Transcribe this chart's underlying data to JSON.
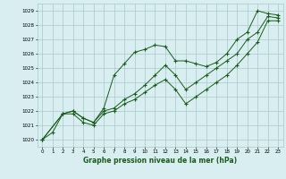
{
  "xlabel": "Graphe pression niveau de la mer (hPa)",
  "xlim": [
    -0.5,
    23.5
  ],
  "ylim": [
    1019.5,
    1029.5
  ],
  "yticks": [
    1020,
    1021,
    1022,
    1023,
    1024,
    1025,
    1026,
    1027,
    1028,
    1029
  ],
  "xticks": [
    0,
    1,
    2,
    3,
    4,
    5,
    6,
    7,
    8,
    9,
    10,
    11,
    12,
    13,
    14,
    15,
    16,
    17,
    18,
    19,
    20,
    21,
    22,
    23
  ],
  "bg_color": "#d8eef0",
  "grid_color": "#a8c8cc",
  "line_color": "#1a5c1a",
  "series": [
    {
      "x": [
        0,
        1,
        2,
        3,
        4,
        5,
        6,
        7,
        8,
        9,
        10,
        11,
        12,
        13,
        14,
        15,
        16,
        17,
        18,
        19,
        20,
        21,
        22,
        23
      ],
      "y": [
        1020.0,
        1020.5,
        1021.8,
        1022.0,
        1021.5,
        1021.2,
        1022.2,
        1024.5,
        1025.3,
        1026.1,
        1026.3,
        1026.6,
        1026.5,
        1025.5,
        1025.5,
        1025.3,
        1025.1,
        1025.4,
        1026.0,
        1027.0,
        1027.5,
        1029.0,
        1028.8,
        1028.7
      ]
    },
    {
      "x": [
        0,
        2,
        3,
        4,
        5,
        6,
        7,
        8,
        9,
        10,
        11,
        12,
        13,
        14,
        15,
        16,
        17,
        18,
        19,
        20,
        21,
        22,
        23
      ],
      "y": [
        1020.0,
        1021.8,
        1022.0,
        1021.5,
        1021.2,
        1022.0,
        1022.2,
        1022.8,
        1023.2,
        1023.8,
        1024.5,
        1025.2,
        1024.5,
        1023.5,
        1024.0,
        1024.5,
        1025.0,
        1025.5,
        1026.0,
        1027.0,
        1027.5,
        1028.6,
        1028.5
      ]
    },
    {
      "x": [
        0,
        2,
        3,
        4,
        5,
        6,
        7,
        8,
        9,
        10,
        11,
        12,
        13,
        14,
        15,
        16,
        17,
        18,
        19,
        20,
        21,
        22,
        23
      ],
      "y": [
        1020.0,
        1021.8,
        1021.8,
        1021.2,
        1021.0,
        1021.8,
        1022.0,
        1022.5,
        1022.8,
        1023.3,
        1023.8,
        1024.2,
        1023.5,
        1022.5,
        1023.0,
        1023.5,
        1024.0,
        1024.5,
        1025.2,
        1026.0,
        1026.8,
        1028.3,
        1028.3
      ]
    }
  ]
}
